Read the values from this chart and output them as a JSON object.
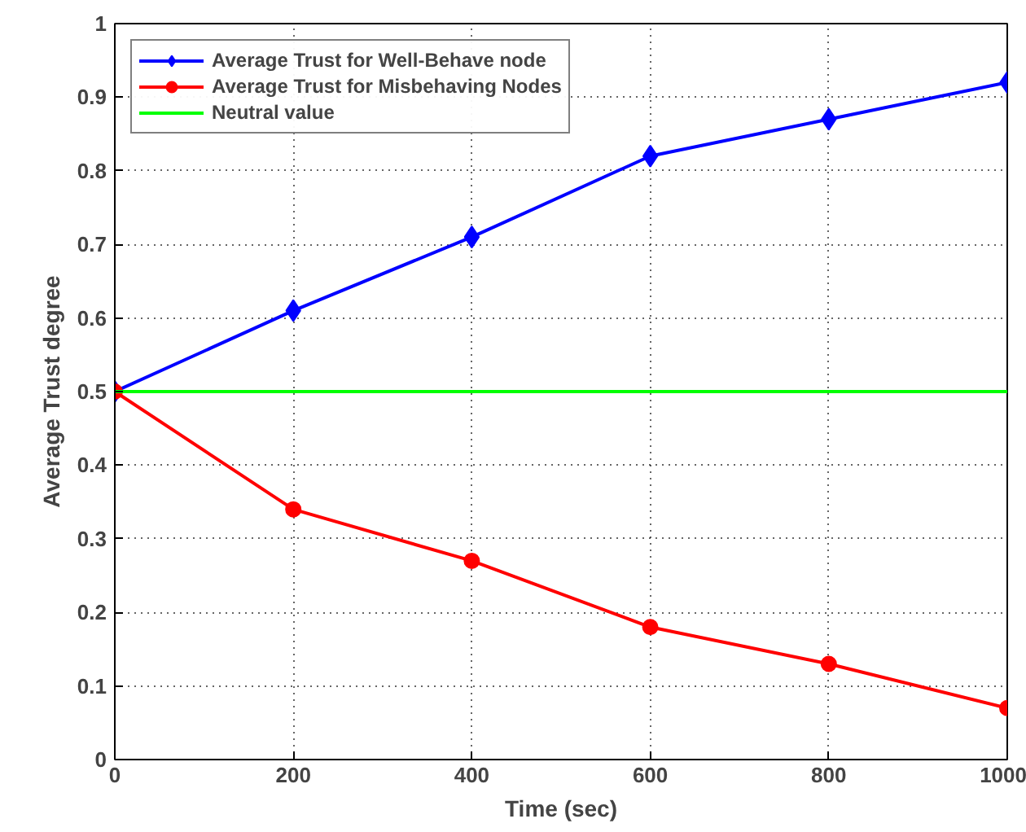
{
  "chart_data": {
    "type": "line",
    "xlabel": "Time (sec)",
    "ylabel": "Average Trust degree",
    "x": [
      0,
      200,
      400,
      600,
      800,
      1000
    ],
    "series": [
      {
        "name": "Average Trust for Well-Behave node",
        "color": "#0000ff",
        "marker": "diamond",
        "values": [
          0.5,
          0.61,
          0.71,
          0.82,
          0.87,
          0.92
        ]
      },
      {
        "name": "Average Trust for Misbehaving Nodes",
        "color": "#ff0000",
        "marker": "circle",
        "values": [
          0.5,
          0.34,
          0.27,
          0.18,
          0.13,
          0.07
        ]
      },
      {
        "name": "Neutral value",
        "color": "#00ff00",
        "marker": "none",
        "values": [
          0.5,
          0.5,
          0.5,
          0.5,
          0.5,
          0.5
        ]
      }
    ],
    "xlim": [
      0,
      1000
    ],
    "ylim": [
      0,
      1
    ],
    "xticks": [
      0,
      200,
      400,
      600,
      800,
      1000
    ],
    "yticks": [
      0,
      0.1,
      0.2,
      0.3,
      0.4,
      0.5,
      0.6,
      0.7,
      0.8,
      0.9,
      1
    ],
    "grid": true,
    "legend": "top left",
    "line_style": "solid"
  }
}
